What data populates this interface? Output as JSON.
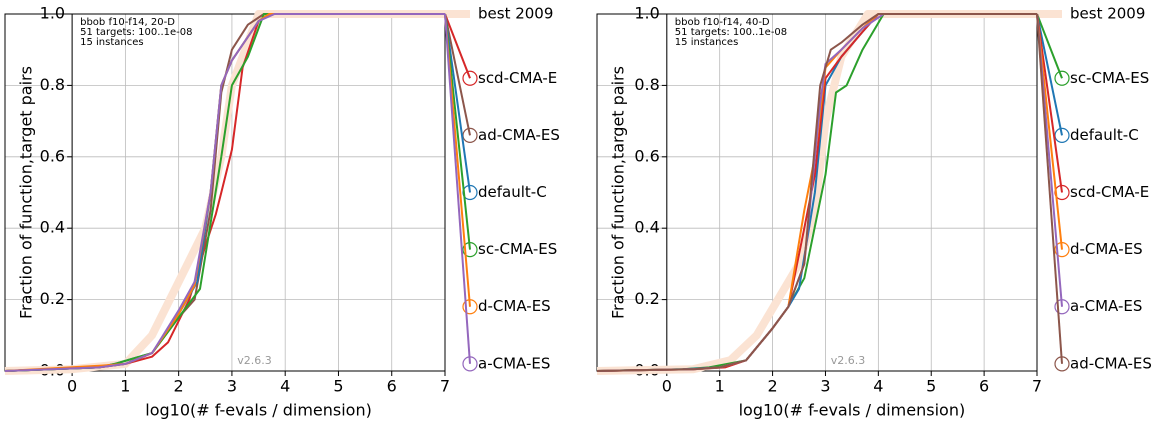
{
  "chart_data": [
    {
      "type": "line",
      "xlabel": "log10(# f-evals / dimension)",
      "ylabel": "Fraction of function,target pairs",
      "annotations": [
        "bbob f10-f14, 20-D",
        "51 targets: 100..1e-08",
        "15 instances"
      ],
      "version": "v2.6.3",
      "xlim": [
        -1.26,
        7
      ],
      "ylim": [
        0,
        1
      ],
      "xticks": [
        0,
        1,
        2,
        3,
        4,
        5,
        6,
        7
      ],
      "yticks": [
        {
          "value": 0,
          "label": "0.0"
        },
        {
          "value": 0.2,
          "label": "0.2"
        },
        {
          "value": 0.4,
          "label": "0.4"
        },
        {
          "value": 0.6,
          "label": "0.6"
        },
        {
          "value": 0.8,
          "label": "0.8"
        },
        {
          "value": 1,
          "label": "1.0"
        }
      ],
      "grid": true,
      "legend": "right",
      "series": [
        {
          "name": "best 2009",
          "color": "#fbe3d3",
          "x": [
            -1.26,
            0,
            1,
            1.5,
            2,
            2.5,
            2.8,
            3.0,
            3.5,
            7
          ],
          "values": [
            0,
            0.005,
            0.02,
            0.1,
            0.25,
            0.4,
            0.6,
            0.8,
            1,
            1
          ]
        },
        {
          "name": "scd-CMA-E",
          "color": "#d62728",
          "x": [
            -1.26,
            0.5,
            1,
            1.5,
            1.8,
            2.2,
            2.5,
            2.7,
            2.8,
            3.0,
            3.2,
            3.5,
            3.7,
            7
          ],
          "values": [
            0,
            0.01,
            0.02,
            0.04,
            0.08,
            0.2,
            0.35,
            0.44,
            0.5,
            0.62,
            0.85,
            0.98,
            1,
            1
          ]
        },
        {
          "name": "ad-CMA-ES",
          "color": "#8c564b",
          "x": [
            -1.26,
            0.5,
            1,
            1.5,
            2,
            2.3,
            2.6,
            2.8,
            3.0,
            3.3,
            3.6,
            7
          ],
          "values": [
            0,
            0.01,
            0.02,
            0.05,
            0.15,
            0.2,
            0.45,
            0.78,
            0.9,
            0.97,
            1,
            1
          ]
        },
        {
          "name": "default-C",
          "color": "#1f77b4",
          "x": [
            -1.26,
            0.5,
            0.8,
            1.5,
            2,
            2.35,
            2.6,
            2.8,
            3.0,
            3.5,
            3.7,
            7
          ],
          "values": [
            0,
            0.01,
            0.02,
            0.05,
            0.16,
            0.25,
            0.5,
            0.8,
            0.87,
            0.98,
            1,
            1
          ]
        },
        {
          "name": "sc-CMA-ES",
          "color": "#2ca02c",
          "x": [
            -1.26,
            0.5,
            0.8,
            1.5,
            2,
            2.4,
            2.8,
            3.0,
            3.3,
            3.6,
            7
          ],
          "values": [
            0,
            0.01,
            0.02,
            0.05,
            0.15,
            0.23,
            0.6,
            0.8,
            0.88,
            1,
            1
          ]
        },
        {
          "name": "d-CMA-ES",
          "color": "#ff7f0e",
          "x": [
            -1.26,
            0.55,
            1,
            1.5,
            2,
            2.3,
            2.6,
            2.8,
            3.0,
            3.5,
            3.7,
            7
          ],
          "values": [
            0,
            0.015,
            0.02,
            0.05,
            0.16,
            0.24,
            0.5,
            0.8,
            0.87,
            0.98,
            1,
            1
          ]
        },
        {
          "name": "a-CMA-ES",
          "color": "#9467bd",
          "x": [
            -1.26,
            0.5,
            1,
            1.5,
            2,
            2.3,
            2.6,
            2.8,
            3.0,
            3.5,
            3.8,
            7
          ],
          "values": [
            0,
            0.01,
            0.02,
            0.05,
            0.17,
            0.25,
            0.5,
            0.8,
            0.87,
            0.98,
            1,
            1
          ]
        }
      ]
    },
    {
      "type": "line",
      "xlabel": "log10(# f-evals / dimension)",
      "ylabel": "Fraction of function,target pairs",
      "annotations": [
        "bbob f10-f14, 40-D",
        "51 targets: 100..1e-08",
        "15 instances"
      ],
      "version": "v2.6.3",
      "xlim": [
        -1.32,
        7
      ],
      "ylim": [
        0,
        1
      ],
      "xticks": [
        0,
        1,
        2,
        3,
        4,
        5,
        6,
        7
      ],
      "yticks": [
        {
          "value": 0,
          "label": "0.0"
        },
        {
          "value": 0.2,
          "label": "0.2"
        },
        {
          "value": 0.4,
          "label": "0.4"
        },
        {
          "value": 0.6,
          "label": "0.6"
        },
        {
          "value": 0.8,
          "label": "0.8"
        },
        {
          "value": 1,
          "label": "1.0"
        }
      ],
      "grid": true,
      "legend": "right",
      "series": [
        {
          "name": "best 2009",
          "color": "#fbe3d3",
          "x": [
            -1.32,
            0.5,
            1.2,
            1.7,
            2.1,
            2.5,
            2.8,
            3.0,
            3.3,
            3.8,
            7
          ],
          "values": [
            0,
            0.005,
            0.03,
            0.1,
            0.2,
            0.3,
            0.45,
            0.7,
            0.88,
            1,
            1
          ]
        },
        {
          "name": "sc-CMA-ES",
          "color": "#2ca02c",
          "x": [
            -1.32,
            0.3,
            0.8,
            1.5,
            2,
            2.3,
            2.6,
            3.0,
            3.2,
            3.4,
            3.7,
            4.1,
            7
          ],
          "values": [
            0,
            0.005,
            0.01,
            0.03,
            0.12,
            0.18,
            0.26,
            0.55,
            0.78,
            0.8,
            0.9,
            1,
            1
          ]
        },
        {
          "name": "default-C",
          "color": "#1f77b4",
          "x": [
            -1.32,
            0.3,
            1,
            1.5,
            2,
            2.3,
            2.5,
            2.8,
            3.0,
            3.3,
            3.7,
            4.0,
            7
          ],
          "values": [
            0,
            0.005,
            0.01,
            0.03,
            0.12,
            0.18,
            0.23,
            0.5,
            0.8,
            0.88,
            0.95,
            1,
            1
          ]
        },
        {
          "name": "scd-CMA-E",
          "color": "#d62728",
          "x": [
            -1.32,
            0.5,
            1.1,
            1.5,
            2,
            2.3,
            2.6,
            2.8,
            3.0,
            3.3,
            3.7,
            4.0,
            7
          ],
          "values": [
            0,
            0.005,
            0.01,
            0.03,
            0.12,
            0.18,
            0.4,
            0.55,
            0.82,
            0.88,
            0.95,
            1,
            1
          ]
        },
        {
          "name": "d-CMA-ES",
          "color": "#ff7f0e",
          "x": [
            -1.32,
            0.5,
            1,
            1.5,
            2,
            2.3,
            2.6,
            2.8,
            3.0,
            3.3,
            3.7,
            4.0,
            7
          ],
          "values": [
            0,
            0.005,
            0.01,
            0.03,
            0.12,
            0.18,
            0.45,
            0.6,
            0.85,
            0.9,
            0.96,
            1,
            1
          ]
        },
        {
          "name": "a-CMA-ES",
          "color": "#9467bd",
          "x": [
            -1.32,
            0.5,
            1,
            1.5,
            2,
            2.3,
            2.6,
            2.9,
            3.0,
            3.3,
            3.7,
            4.1,
            7
          ],
          "values": [
            0,
            0.005,
            0.01,
            0.03,
            0.12,
            0.18,
            0.3,
            0.75,
            0.86,
            0.9,
            0.96,
            1,
            1
          ]
        },
        {
          "name": "ad-CMA-ES",
          "color": "#8c564b",
          "x": [
            -1.32,
            0.5,
            1,
            1.5,
            2,
            2.3,
            2.6,
            2.9,
            3.1,
            3.3,
            3.7,
            4.0,
            7
          ],
          "values": [
            0,
            0.005,
            0.01,
            0.03,
            0.12,
            0.18,
            0.3,
            0.8,
            0.9,
            0.92,
            0.97,
            1,
            1
          ]
        }
      ]
    }
  ]
}
